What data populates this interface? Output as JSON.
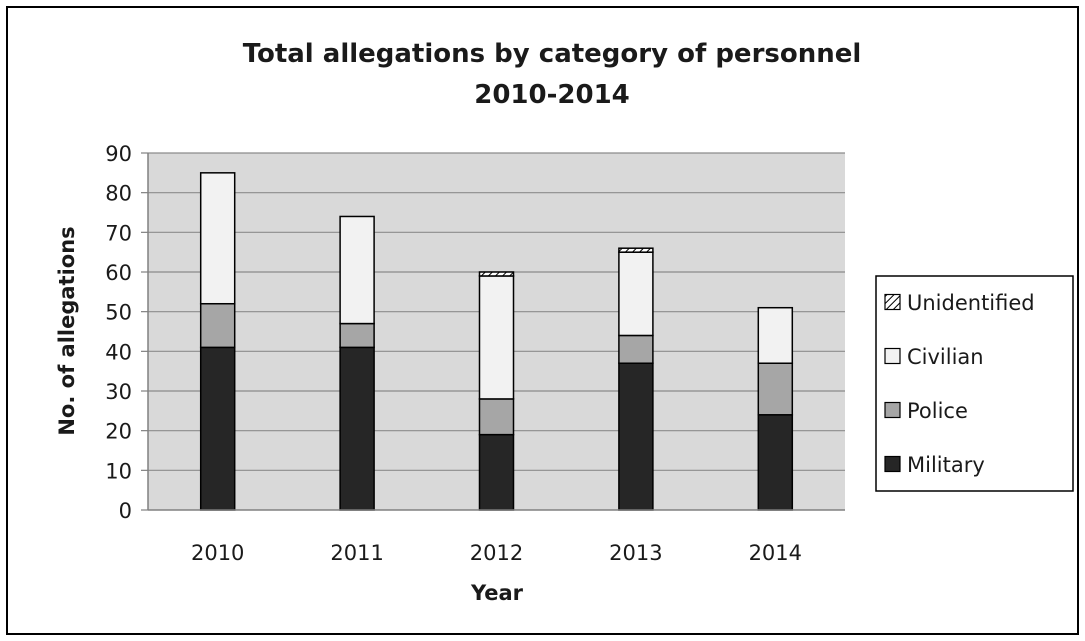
{
  "chart_data": {
    "type": "bar",
    "stacked": true,
    "title": [
      "Total allegations by category of personnel",
      "2010-2014"
    ],
    "xlabel": "Year",
    "ylabel": "No. of allegations",
    "categories": [
      "2010",
      "2011",
      "2012",
      "2013",
      "2014"
    ],
    "ylim": [
      0,
      90
    ],
    "yticks": [
      0,
      10,
      20,
      30,
      40,
      50,
      60,
      70,
      80,
      90
    ],
    "grid": true,
    "legend_position": "right",
    "series": [
      {
        "name": "Military",
        "values": [
          41,
          41,
          19,
          37,
          24
        ],
        "fill": "#262626",
        "pattern": "solid"
      },
      {
        "name": "Police",
        "values": [
          11,
          6,
          9,
          7,
          13
        ],
        "fill": "#a6a6a6",
        "pattern": "solid"
      },
      {
        "name": "Civilian",
        "values": [
          33,
          27,
          31,
          21,
          14
        ],
        "fill": "#f2f2f2",
        "pattern": "solid"
      },
      {
        "name": "Unidentified",
        "values": [
          0,
          0,
          1,
          1,
          0
        ],
        "fill": "#ffffff",
        "pattern": "hatch"
      }
    ],
    "legend_order": [
      "Unidentified",
      "Civilian",
      "Police",
      "Military"
    ],
    "plot_background": "#d9d9d9",
    "outline_color": "#000000"
  }
}
